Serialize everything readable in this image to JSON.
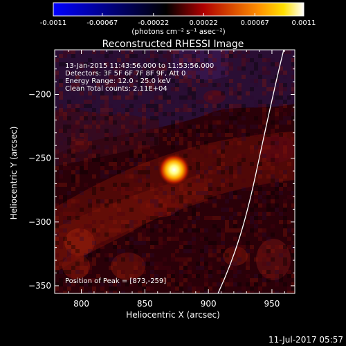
{
  "colorbar": {
    "ticks": [
      "-0.0011",
      "-0.00067",
      "-0.00022",
      "0.00022",
      "0.00067",
      "0.0011"
    ],
    "tick_values": [
      -0.0011,
      -0.00067,
      -0.00022,
      0.00022,
      0.00067,
      0.0011
    ],
    "range": [
      -0.0011,
      0.0011
    ],
    "unit_label": "(photons cm⁻² s⁻¹ asec⁻²)",
    "colors": [
      "#0000ff",
      "#000000",
      "#ff0000",
      "#ffff00",
      "#ffffff"
    ]
  },
  "plot": {
    "title": "Reconstructed RHESSI Image",
    "info": [
      "13-Jan-2015 11:43:56.000 to 11:53:56.000",
      "Detectors: 3F 5F 6F 7F 8F 9F, Att 0",
      "Energy Range: 12.0 - 25.0 keV",
      "Clean     Total counts: 2.11E+04"
    ],
    "peak_label": "Position of Peak = [873,-259]",
    "xlabel": "Heliocentric X (arcsec)",
    "ylabel": "Heliocentric Y (arcsec)",
    "xticks": [
      "800",
      "850",
      "900",
      "950"
    ],
    "xtick_values": [
      800,
      850,
      900,
      950
    ],
    "yticks": [
      "−200",
      "−250",
      "−300",
      "−350"
    ],
    "ytick_values": [
      -200,
      -250,
      -300,
      -350
    ],
    "xlim": [
      779,
      968
    ],
    "ylim": [
      -356,
      -165
    ],
    "peak": [
      873,
      -259
    ]
  },
  "footer": {
    "timestamp": "11-Jul-2017 05:57"
  }
}
